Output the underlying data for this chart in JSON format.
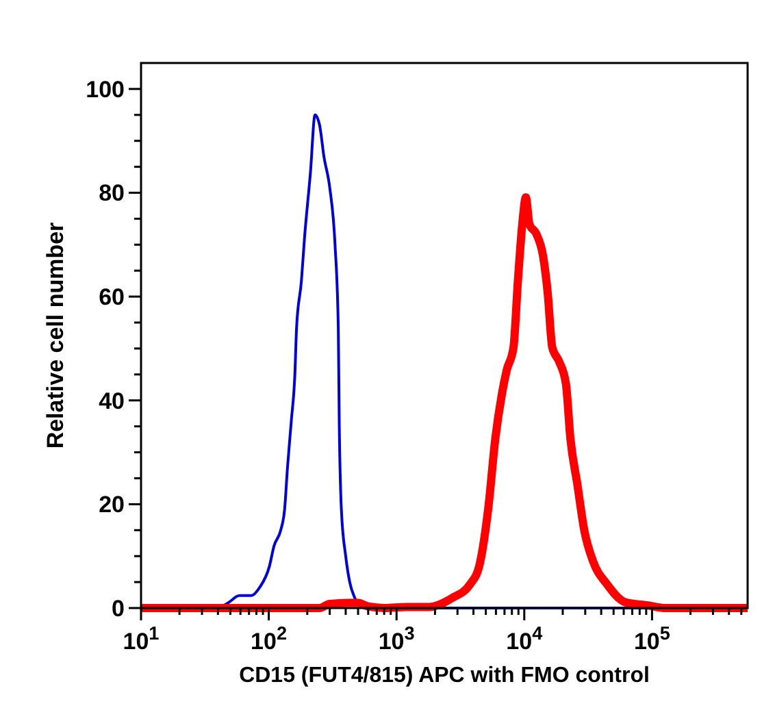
{
  "chart_data": {
    "type": "line",
    "xlabel": "CD15 (FUT4/815) APC with FMO control",
    "ylabel": "Relative cell number",
    "log": "x",
    "grid": false,
    "marker": "none",
    "line_style": "solid",
    "xlim": [
      10,
      560000
    ],
    "ylim": [
      0,
      105
    ],
    "xticks": [
      {
        "value": 10,
        "label": "10$^{1}$"
      },
      {
        "value": 20,
        "label": null
      },
      {
        "value": 30,
        "label": null
      },
      {
        "value": 40,
        "label": null
      },
      {
        "value": 50,
        "label": null
      },
      {
        "value": 60,
        "label": null
      },
      {
        "value": 70,
        "label": null
      },
      {
        "value": 80,
        "label": null
      },
      {
        "value": 90,
        "label": null
      },
      {
        "value": 100,
        "label": "10$^{2}$"
      },
      {
        "value": 200,
        "label": null
      },
      {
        "value": 300,
        "label": null
      },
      {
        "value": 400,
        "label": null
      },
      {
        "value": 500,
        "label": null
      },
      {
        "value": 600,
        "label": null
      },
      {
        "value": 700,
        "label": null
      },
      {
        "value": 800,
        "label": null
      },
      {
        "value": 900,
        "label": null
      },
      {
        "value": 1000,
        "label": "10$^{3}$"
      },
      {
        "value": 2000,
        "label": null
      },
      {
        "value": 3000,
        "label": null
      },
      {
        "value": 4000,
        "label": null
      },
      {
        "value": 5000,
        "label": null
      },
      {
        "value": 6000,
        "label": null
      },
      {
        "value": 7000,
        "label": null
      },
      {
        "value": 8000,
        "label": null
      },
      {
        "value": 9000,
        "label": null
      },
      {
        "value": 10000,
        "label": "10$^{4}$"
      },
      {
        "value": 20000,
        "label": null
      },
      {
        "value": 30000,
        "label": null
      },
      {
        "value": 40000,
        "label": null
      },
      {
        "value": 50000,
        "label": null
      },
      {
        "value": 60000,
        "label": null
      },
      {
        "value": 70000,
        "label": null
      },
      {
        "value": 80000,
        "label": null
      },
      {
        "value": 90000,
        "label": null
      },
      {
        "value": 100000,
        "label": "10$^{5}$"
      },
      {
        "value": 200000,
        "label": null
      },
      {
        "value": 300000,
        "label": null
      },
      {
        "value": 400000,
        "label": null
      },
      {
        "value": 500000,
        "label": null
      }
    ],
    "yticks": [
      0,
      {
        "value": 5,
        "label": null
      },
      {
        "value": 10,
        "label": null
      },
      {
        "value": 15,
        "label": null
      },
      20,
      {
        "value": 25,
        "label": null
      },
      {
        "value": 30,
        "label": null
      },
      {
        "value": 35,
        "label": null
      },
      40,
      {
        "value": 45,
        "label": null
      },
      {
        "value": 50,
        "label": null
      },
      {
        "value": 55,
        "label": null
      },
      60,
      {
        "value": 65,
        "label": null
      },
      {
        "value": 70,
        "label": null
      },
      {
        "value": 75,
        "label": null
      },
      80,
      {
        "value": 85,
        "label": null
      },
      {
        "value": 90,
        "label": null
      },
      {
        "value": 95,
        "label": null
      },
      100
    ],
    "series": [
      {
        "color": "#ff0000",
        "x": [
          10,
          250,
          300,
          500,
          600,
          800,
          1200,
          1795,
          2710,
          3770,
          4440,
          5240,
          5930,
          6700,
          7280,
          8230,
          8930,
          9710,
          10280,
          10980,
          12420,
          14050,
          15250,
          16560,
          18720,
          21180,
          22970,
          26000,
          29420,
          34670,
          44360,
          61800,
          93100,
          128000,
          560000
        ],
        "values": [
          0,
          0,
          0.8,
          1,
          0.3,
          0,
          0.2,
          0.2,
          1.9,
          4.6,
          8.1,
          19.5,
          32.6,
          41.4,
          45.8,
          50.2,
          63.3,
          74.7,
          79.1,
          73.9,
          72.1,
          67.7,
          60.7,
          50.2,
          47.5,
          43.2,
          32.6,
          23.9,
          15.1,
          8.9,
          4.6,
          1.1,
          0.5,
          0,
          0
        ]
      },
      {
        "color": "#0000dd",
        "x": [
          10,
          39,
          48,
          59,
          73,
          85,
          101,
          110,
          124,
          133,
          140,
          150,
          160,
          165,
          180,
          190,
          212,
          230,
          250,
          270,
          300,
          330,
          350,
          356,
          370,
          400,
          430,
          470,
          530,
          600,
          560000
        ],
        "values": [
          0,
          0,
          1,
          2.4,
          2.4,
          4,
          8,
          12,
          15,
          19,
          27,
          36,
          45,
          54,
          63,
          71,
          84,
          95,
          93,
          87,
          81,
          70,
          54,
          36,
          19,
          10,
          5,
          2,
          0.2,
          0,
          0
        ]
      }
    ]
  }
}
